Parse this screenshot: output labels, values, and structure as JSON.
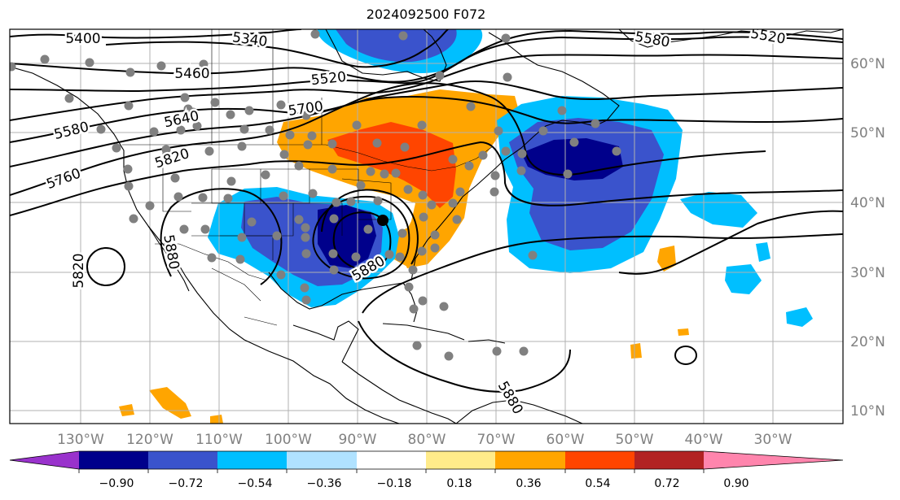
{
  "title": "2024092500 F072",
  "map": {
    "lon_labels": [
      "130°W",
      "120°W",
      "110°W",
      "100°W",
      "90°W",
      "80°W",
      "70°W",
      "60°W",
      "50°W",
      "40°W",
      "30°W"
    ],
    "lat_labels": [
      "60°N",
      "50°N",
      "40°N",
      "30°N",
      "20°N",
      "10°N"
    ],
    "contour_labels": [
      "5400",
      "5340",
      "5460",
      "5520",
      "5580",
      "5520",
      "5700",
      "5640",
      "5580",
      "5820",
      "5760",
      "5820",
      "5880",
      "5880",
      "5880"
    ],
    "station_color": "#808080"
  },
  "colorbar": {
    "ticks": [
      "−0.90",
      "−0.72",
      "−0.54",
      "−0.36",
      "−0.18",
      "0.18",
      "0.36",
      "0.54",
      "0.72",
      "0.90"
    ],
    "colors": [
      "#9932cc",
      "#00008b",
      "#3a53cc",
      "#00bfff",
      "#b0e2ff",
      "#ffffff",
      "#ffeb8a",
      "#ffa500",
      "#ff4500",
      "#b22222",
      "#ff85ad"
    ]
  }
}
